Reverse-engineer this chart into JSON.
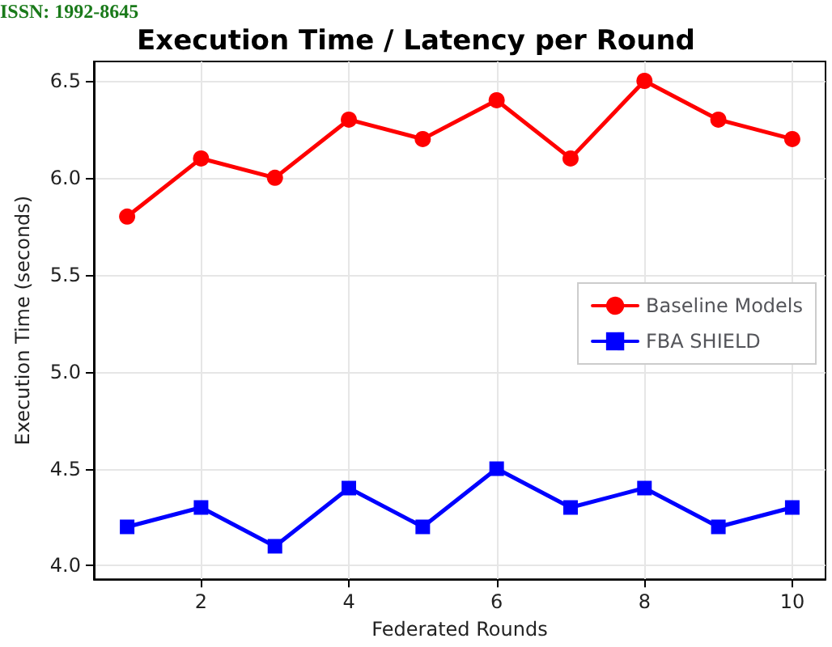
{
  "chart_data": {
    "type": "line",
    "title": "Execution Time / Latency per Round",
    "xlabel": "Federated Rounds",
    "ylabel": "Execution Time (seconds)",
    "annotations": [
      "ISSN: 1992-8645"
    ],
    "x": [
      1,
      2,
      3,
      4,
      5,
      6,
      7,
      8,
      9,
      10
    ],
    "series": [
      {
        "name": "Baseline Models",
        "color": "#ff0000",
        "marker": "circle",
        "values": [
          5.8,
          6.1,
          6.0,
          6.3,
          6.2,
          6.4,
          6.1,
          6.5,
          6.3,
          6.2
        ]
      },
      {
        "name": "FBA SHIELD",
        "color": "#0000ff",
        "marker": "square",
        "values": [
          4.2,
          4.3,
          4.1,
          4.4,
          4.2,
          4.5,
          4.3,
          4.4,
          4.2,
          4.3
        ]
      }
    ],
    "xlim": [
      0.55,
      10.45
    ],
    "xticks": [
      2,
      4,
      6,
      8,
      10
    ],
    "ylim": [
      3.93,
      6.6
    ],
    "yticks": [
      {
        "value": 4,
        "label": "4.0"
      },
      4.5,
      {
        "value": 5,
        "label": "5.0"
      },
      5.5,
      {
        "value": 6,
        "label": "6.0"
      },
      6.5
    ],
    "grid": true,
    "legend": "right",
    "line_style": "solid"
  }
}
